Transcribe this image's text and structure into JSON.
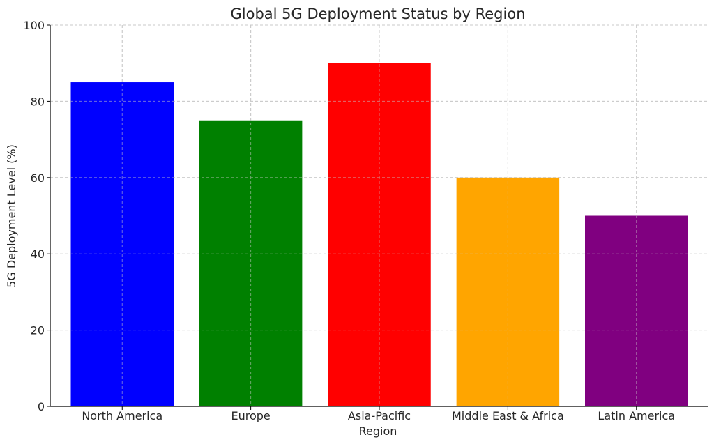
{
  "chart_data": {
    "type": "bar",
    "title": "Global 5G Deployment Status by Region",
    "xlabel": "Region",
    "ylabel": "5G Deployment Level (%)",
    "categories": [
      "North America",
      "Europe",
      "Asia-Pacific",
      "Middle East & Africa",
      "Latin America"
    ],
    "values": [
      85,
      75,
      90,
      60,
      50
    ],
    "colors": [
      "#0000ff",
      "#008000",
      "#ff0000",
      "#ffa500",
      "#800080"
    ],
    "ylim": [
      0,
      100
    ],
    "yticks": [
      0,
      20,
      40,
      60,
      80,
      100
    ],
    "grid": true,
    "legend": "none"
  }
}
